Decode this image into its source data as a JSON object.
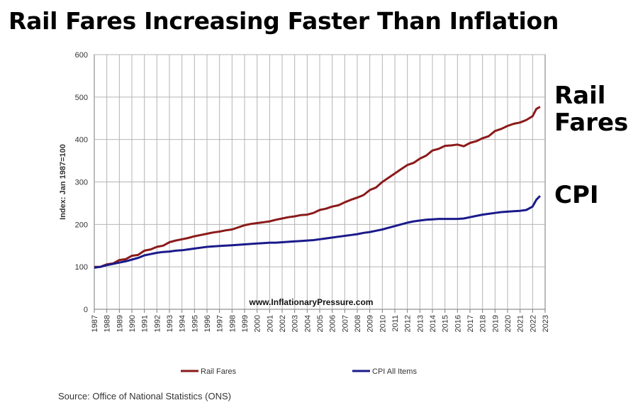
{
  "title": "Rail Fares Increasing Faster Than Inflation",
  "source": "Source: Office of National Statistics (ONS)",
  "side_labels": {
    "rail_line1": "Rail",
    "rail_line2": "Fares",
    "cpi": "CPI"
  },
  "colors": {
    "rail": "#8b1a1a",
    "cpi": "#1a1a8b",
    "grid": "#b4b4b4",
    "axis": "#777777"
  },
  "chart_data": {
    "type": "line",
    "title": "Rail Fares Increasing Faster Than Inflation",
    "xlabel": "",
    "ylabel": "Index: Jan 1987=100",
    "ylim": [
      0,
      600
    ],
    "yticks": [
      0,
      100,
      200,
      300,
      400,
      500,
      600
    ],
    "xlim": [
      1987,
      2023
    ],
    "x_tick_labels": [
      "1987",
      "1988",
      "1989",
      "1990",
      "1991",
      "1992",
      "1993",
      "1994",
      "1995",
      "1996",
      "1997",
      "1998",
      "1999",
      "2000",
      "2001",
      "2002",
      "2003",
      "2004",
      "2005",
      "2006",
      "2007",
      "2008",
      "2009",
      "2010",
      "2011",
      "2012",
      "2013",
      "2014",
      "2015",
      "2016",
      "2017",
      "2018",
      "2019",
      "2020",
      "2021",
      "2022",
      "2023"
    ],
    "watermark": "www.InflationaryPressure.com",
    "x": [
      1987.0,
      1987.5,
      1988.0,
      1988.5,
      1989.0,
      1989.5,
      1990.0,
      1990.5,
      1991.0,
      1991.5,
      1992.0,
      1992.5,
      1993.0,
      1993.5,
      1994.0,
      1994.5,
      1995.0,
      1995.5,
      1996.0,
      1996.5,
      1997.0,
      1997.5,
      1998.0,
      1998.5,
      1999.0,
      1999.5,
      2000.0,
      2000.5,
      2001.0,
      2001.5,
      2002.0,
      2002.5,
      2003.0,
      2003.5,
      2004.0,
      2004.5,
      2005.0,
      2005.5,
      2006.0,
      2006.5,
      2007.0,
      2007.5,
      2008.0,
      2008.5,
      2009.0,
      2009.5,
      2010.0,
      2010.5,
      2011.0,
      2011.5,
      2012.0,
      2012.5,
      2013.0,
      2013.5,
      2014.0,
      2014.5,
      2015.0,
      2015.5,
      2016.0,
      2016.5,
      2017.0,
      2017.5,
      2018.0,
      2018.5,
      2019.0,
      2019.5,
      2020.0,
      2020.5,
      2021.0,
      2021.5,
      2022.0,
      2022.3,
      2022.6
    ],
    "series": [
      {
        "name": "Rail Fares",
        "values": [
          100,
          100,
          106,
          108,
          116,
          118,
          126,
          128,
          138,
          141,
          147,
          150,
          158,
          162,
          165,
          168,
          172,
          175,
          178,
          181,
          183,
          186,
          188,
          193,
          198,
          201,
          203,
          205,
          207,
          211,
          214,
          217,
          219,
          222,
          223,
          227,
          234,
          237,
          242,
          245,
          252,
          258,
          263,
          269,
          281,
          287,
          300,
          310,
          320,
          330,
          340,
          345,
          355,
          362,
          374,
          378,
          385,
          386,
          388,
          384,
          392,
          396,
          403,
          408,
          420,
          425,
          432,
          437,
          440,
          446,
          455,
          472,
          477
        ]
      },
      {
        "name": "CPI All Items",
        "values": [
          98,
          100,
          104,
          107,
          110,
          113,
          117,
          121,
          127,
          130,
          133,
          135,
          136,
          138,
          139,
          141,
          143,
          145,
          147,
          148,
          149,
          150,
          151,
          152,
          153,
          154,
          155,
          156,
          157,
          157,
          158,
          159,
          160,
          161,
          162,
          163,
          165,
          167,
          169,
          171,
          173,
          175,
          177,
          180,
          182,
          185,
          188,
          192,
          196,
          200,
          204,
          207,
          209,
          211,
          212,
          213,
          213,
          213,
          213,
          214,
          217,
          220,
          223,
          225,
          227,
          229,
          230,
          231,
          232,
          234,
          242,
          258,
          267
        ]
      }
    ],
    "legend": [
      "Rail Fares",
      "CPI All Items"
    ],
    "legend_position": "bottom"
  }
}
